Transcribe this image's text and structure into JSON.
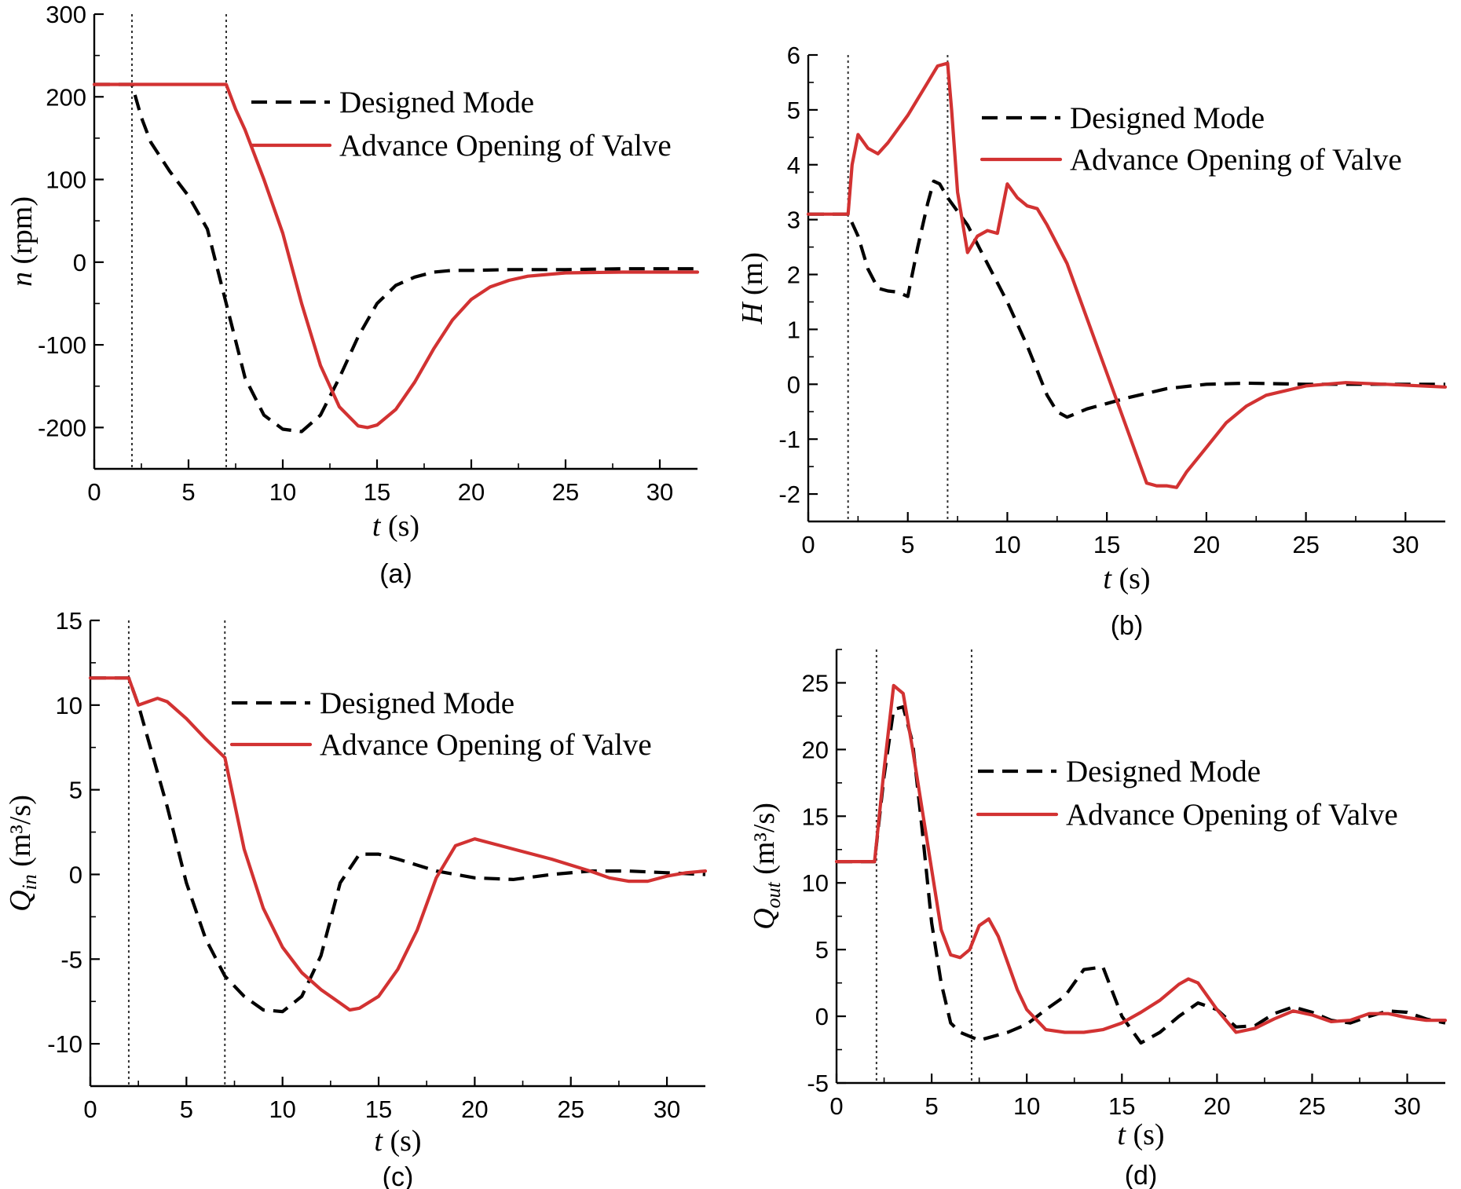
{
  "colors": {
    "designed": "#000000",
    "advance": "#d23232",
    "axis": "#000000"
  },
  "chart_data": [
    {
      "type": "line",
      "panel": "(a)",
      "xlabel": "t (s)",
      "xlabel_var": "t",
      "xlabel_unit": " (s)",
      "ylabel": "n (rpm)",
      "ylabel_var": "n",
      "ylabel_unit": " (rpm)",
      "xlim": [
        0,
        32
      ],
      "ylim": [
        -250,
        300
      ],
      "xticks": [
        0,
        5,
        10,
        15,
        20,
        25,
        30
      ],
      "yticks": [
        -200,
        -100,
        0,
        100,
        200,
        300
      ],
      "vlines": [
        2,
        7
      ],
      "legend": {
        "position": "top-right",
        "entries": [
          "Designed Mode",
          "Advance Opening of Valve"
        ]
      },
      "series": [
        {
          "name": "Designed Mode",
          "style": "dashed",
          "x": [
            0,
            2,
            2.5,
            3,
            4,
            5,
            6,
            7,
            8,
            9,
            10,
            11,
            12,
            13,
            14,
            15,
            16,
            17,
            18,
            19,
            20,
            22,
            25,
            28,
            30,
            32
          ],
          "y": [
            215,
            215,
            175,
            145,
            110,
            80,
            40,
            -50,
            -140,
            -185,
            -202,
            -205,
            -185,
            -140,
            -90,
            -50,
            -28,
            -18,
            -12,
            -10,
            -10,
            -9,
            -9,
            -8,
            -8,
            -8
          ]
        },
        {
          "name": "Advance Opening of Valve",
          "style": "solid",
          "x": [
            0,
            2,
            7,
            7.5,
            8,
            9,
            10,
            11,
            12,
            13,
            14,
            14.5,
            15,
            16,
            17,
            18,
            19,
            20,
            21,
            22,
            23,
            25,
            28,
            32
          ],
          "y": [
            215,
            215,
            215,
            185,
            160,
            100,
            35,
            -50,
            -125,
            -175,
            -198,
            -200,
            -197,
            -178,
            -145,
            -105,
            -70,
            -45,
            -30,
            -22,
            -17,
            -13,
            -12,
            -12
          ]
        }
      ]
    },
    {
      "type": "line",
      "panel": "(b)",
      "xlabel": "t (s)",
      "xlabel_var": "t",
      "xlabel_unit": " (s)",
      "ylabel": "H (m)",
      "ylabel_var": "H",
      "ylabel_unit": " (m)",
      "xlim": [
        0,
        32
      ],
      "ylim": [
        -2.5,
        6
      ],
      "xticks": [
        0,
        5,
        10,
        15,
        20,
        25,
        30
      ],
      "yticks": [
        -2,
        -1,
        0,
        1,
        2,
        3,
        4,
        5,
        6
      ],
      "vlines": [
        2,
        7
      ],
      "legend": {
        "position": "top-right",
        "entries": [
          "Designed Mode",
          "Advance Opening of Valve"
        ]
      },
      "series": [
        {
          "name": "Designed Mode",
          "style": "dashed",
          "x": [
            0,
            2,
            2.5,
            3,
            3.5,
            4,
            4.5,
            5,
            5.5,
            6,
            6.3,
            6.6,
            7,
            8,
            9,
            10,
            11,
            12,
            12.5,
            13,
            14,
            15,
            16,
            18,
            20,
            22,
            25,
            28,
            32
          ],
          "y": [
            3.1,
            3.1,
            2.7,
            2.1,
            1.75,
            1.7,
            1.68,
            1.6,
            2.5,
            3.3,
            3.7,
            3.65,
            3.4,
            2.9,
            2.2,
            1.5,
            0.7,
            -0.2,
            -0.5,
            -0.6,
            -0.45,
            -0.35,
            -0.25,
            -0.08,
            0.0,
            0.02,
            0.0,
            0.0,
            0.0
          ]
        },
        {
          "name": "Advance Opening of Valve",
          "style": "solid",
          "x": [
            0,
            2,
            2.2,
            2.5,
            3,
            3.5,
            4,
            5,
            6,
            6.5,
            7,
            7.2,
            7.5,
            8,
            8.5,
            9,
            9.5,
            10,
            10.5,
            11,
            11.5,
            12,
            13,
            14,
            15,
            16,
            17,
            17.5,
            18,
            18.5,
            19,
            20,
            21,
            22,
            23,
            25,
            27,
            29,
            32
          ],
          "y": [
            3.1,
            3.1,
            4.0,
            4.55,
            4.3,
            4.2,
            4.4,
            4.9,
            5.5,
            5.8,
            5.85,
            5.0,
            3.5,
            2.4,
            2.7,
            2.8,
            2.75,
            3.65,
            3.4,
            3.25,
            3.2,
            2.9,
            2.2,
            1.2,
            0.2,
            -0.8,
            -1.8,
            -1.85,
            -1.85,
            -1.88,
            -1.6,
            -1.15,
            -0.7,
            -0.4,
            -0.2,
            -0.03,
            0.03,
            0.0,
            -0.05
          ]
        }
      ]
    },
    {
      "type": "line",
      "panel": "(c)",
      "xlabel": "t (s)",
      "xlabel_var": "t",
      "xlabel_unit": " (s)",
      "ylabel": "Q_in (m³/s)",
      "ylabel_var": "Q",
      "ylabel_sub": "in",
      "ylabel_unit": " (m³/s)",
      "xlim": [
        0,
        32
      ],
      "ylim": [
        -12.5,
        15
      ],
      "xticks": [
        0,
        5,
        10,
        15,
        20,
        25,
        30
      ],
      "yticks": [
        -10,
        -5,
        0,
        5,
        10,
        15
      ],
      "vlines": [
        2,
        7
      ],
      "legend": {
        "position": "top-right",
        "entries": [
          "Designed Mode",
          "Advance Opening of Valve"
        ]
      },
      "series": [
        {
          "name": "Designed Mode",
          "style": "dashed",
          "x": [
            0,
            2,
            2.5,
            3,
            4,
            5,
            6,
            7,
            8,
            9,
            10,
            11,
            12,
            13,
            14,
            15,
            16,
            18,
            20,
            22,
            24,
            26,
            28,
            30,
            32
          ],
          "y": [
            11.6,
            11.6,
            10.0,
            8.0,
            4.0,
            -0.5,
            -3.8,
            -6.0,
            -7.2,
            -8.0,
            -8.1,
            -7.2,
            -4.8,
            -0.5,
            1.2,
            1.2,
            0.9,
            0.2,
            -0.2,
            -0.3,
            0.0,
            0.2,
            0.2,
            0.1,
            0.0
          ]
        },
        {
          "name": "Advance Opening of Valve",
          "style": "solid",
          "x": [
            0,
            2,
            2.5,
            3,
            3.5,
            4,
            5,
            6,
            7,
            8,
            9,
            10,
            11,
            12,
            13,
            13.5,
            14,
            15,
            16,
            17,
            18,
            19,
            20,
            21,
            22,
            24,
            26,
            27,
            28,
            29,
            30,
            31,
            32
          ],
          "y": [
            11.6,
            11.6,
            10.0,
            10.2,
            10.4,
            10.2,
            9.2,
            8.0,
            6.9,
            1.5,
            -2.0,
            -4.3,
            -5.8,
            -6.8,
            -7.6,
            -8.0,
            -7.9,
            -7.2,
            -5.6,
            -3.3,
            -0.2,
            1.7,
            2.1,
            1.8,
            1.5,
            0.9,
            0.2,
            -0.2,
            -0.4,
            -0.4,
            -0.1,
            0.1,
            0.2
          ]
        }
      ]
    },
    {
      "type": "line",
      "panel": "(d)",
      "xlabel": "t (s)",
      "xlabel_var": "t",
      "xlabel_unit": " (s)",
      "ylabel": "Q_out (m³/s)",
      "ylabel_var": "Q",
      "ylabel_sub": "out",
      "ylabel_unit": " (m³/s)",
      "xlim": [
        0,
        32
      ],
      "ylim": [
        -5,
        27.5
      ],
      "xticks": [
        0,
        5,
        10,
        15,
        20,
        25,
        30
      ],
      "yticks": [
        -5,
        0,
        5,
        10,
        15,
        20,
        25
      ],
      "vlines": [
        2.1,
        7.1
      ],
      "legend": {
        "position": "right",
        "entries": [
          "Designed Mode",
          "Advance Opening of Valve"
        ]
      },
      "series": [
        {
          "name": "Designed Mode",
          "style": "dashed",
          "x": [
            0,
            2,
            2.5,
            3,
            3.5,
            4,
            4.5,
            5,
            5.5,
            6,
            6.5,
            7,
            7.5,
            9,
            10,
            11,
            12,
            13,
            14,
            15,
            16,
            17,
            18,
            19,
            20,
            21,
            22,
            23,
            24,
            25,
            26,
            27,
            28,
            29,
            30,
            31,
            32
          ],
          "y": [
            11.6,
            11.6,
            18.0,
            23.0,
            23.2,
            20.5,
            14.0,
            7.0,
            2.5,
            -0.5,
            -1.2,
            -1.5,
            -1.8,
            -1.2,
            -0.6,
            0.5,
            1.5,
            3.5,
            3.7,
            0.0,
            -2.0,
            -1.2,
            0.0,
            1.0,
            0.5,
            -0.8,
            -0.7,
            0.2,
            0.7,
            0.3,
            -0.3,
            -0.5,
            0.0,
            0.4,
            0.3,
            -0.2,
            -0.5
          ]
        },
        {
          "name": "Advance Opening of Valve",
          "style": "solid",
          "x": [
            0,
            2,
            2.5,
            3,
            3.5,
            4,
            4.5,
            5,
            5.5,
            6,
            6.5,
            7,
            7.5,
            8,
            8.5,
            9,
            9.5,
            10,
            11,
            12,
            13,
            14,
            15,
            16,
            17,
            18,
            18.5,
            19,
            20,
            21,
            22,
            23,
            24,
            25,
            26,
            27,
            28,
            29,
            30,
            31,
            32
          ],
          "y": [
            11.6,
            11.6,
            18.5,
            24.8,
            24.2,
            20.0,
            15.5,
            11.0,
            6.5,
            4.6,
            4.4,
            5.0,
            6.8,
            7.3,
            6.0,
            4.0,
            2.0,
            0.5,
            -1.0,
            -1.2,
            -1.2,
            -1.0,
            -0.5,
            0.3,
            1.2,
            2.4,
            2.8,
            2.5,
            0.5,
            -1.2,
            -0.9,
            -0.2,
            0.4,
            0.1,
            -0.4,
            -0.3,
            0.2,
            0.2,
            -0.1,
            -0.3,
            -0.3
          ]
        }
      ]
    }
  ]
}
